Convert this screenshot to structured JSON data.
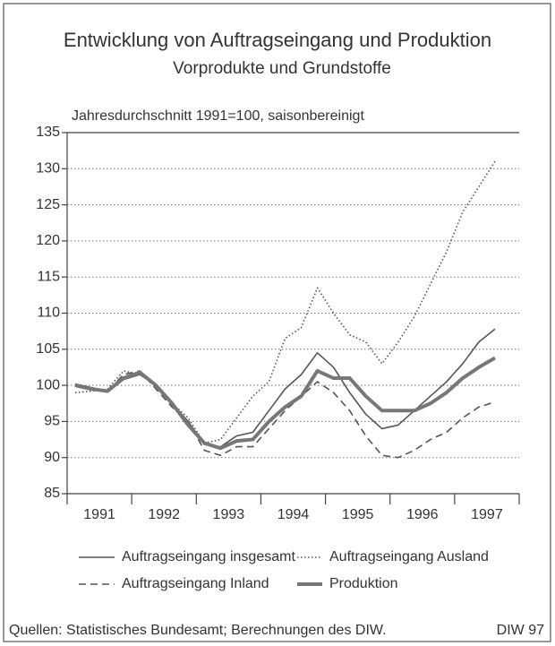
{
  "chart_data": {
    "type": "line",
    "title": "Entwicklung von Auftragseingang und Produktion",
    "subtitle": "Vorprodukte und Grundstoffe",
    "y_label": "Jahresdurchschnitt 1991=100, saisonbereinigt",
    "source": "Quellen: Statistisches Bundesamt; Berechnungen des DIW.",
    "credit": "DIW 97",
    "x": [
      1991.125,
      1991.375,
      1991.625,
      1991.875,
      1992.125,
      1992.375,
      1992.625,
      1992.875,
      1993.125,
      1993.375,
      1993.625,
      1993.875,
      1994.125,
      1994.375,
      1994.625,
      1994.875,
      1995.125,
      1995.375,
      1995.625,
      1995.875,
      1996.125,
      1996.375,
      1996.625,
      1996.875,
      1997.125,
      1997.375,
      1997.625
    ],
    "series": [
      {
        "name": "Auftragseingang insgesamt",
        "color": "#555",
        "dash": "solid",
        "width": 1.6,
        "values": [
          100.2,
          99.7,
          99.2,
          100.8,
          101.5,
          100,
          97.5,
          95,
          91.8,
          91.5,
          93,
          93.5,
          96.5,
          99.5,
          101.5,
          104.5,
          102.5,
          99,
          96,
          94,
          94.5,
          96.5,
          98.5,
          100.5,
          103,
          106,
          107.8
        ]
      },
      {
        "name": "Auftragseingang Ausland",
        "color": "#555",
        "dash": "dotted",
        "width": 1.6,
        "values": [
          99,
          99.2,
          99.5,
          102,
          101.5,
          100,
          97.5,
          95.5,
          92,
          92.5,
          95.5,
          98.5,
          100.5,
          106.5,
          108,
          113.5,
          110,
          107,
          106,
          103,
          106,
          109.5,
          114,
          118.5,
          124,
          127.5,
          131
        ]
      },
      {
        "name": "Auftragseingang Inland",
        "color": "#555",
        "dash": "dashed",
        "width": 1.6,
        "values": [
          100,
          99.6,
          99.2,
          101.5,
          102,
          99.5,
          97,
          95,
          91,
          90.3,
          91.5,
          91.5,
          94,
          96.5,
          98.5,
          100.5,
          99,
          96.5,
          93,
          90.3,
          90,
          91,
          92.5,
          93.5,
          95.5,
          97,
          97.7
        ]
      },
      {
        "name": "Produktion",
        "color": "#777",
        "dash": "solid",
        "width": 4,
        "values": [
          100,
          99.5,
          99.2,
          101,
          101.8,
          100,
          97.5,
          94.5,
          92,
          91.3,
          92.3,
          92.5,
          95,
          97,
          98.5,
          102,
          101,
          101,
          98.5,
          96.5,
          96.5,
          96.5,
          97.5,
          99,
          101,
          102.5,
          103.8
        ]
      }
    ],
    "xlim": [
      1991,
      1998
    ],
    "xticks": [
      {
        "value": 1991.5,
        "label": "1991"
      },
      {
        "value": 1992.5,
        "label": "1992"
      },
      {
        "value": 1993.5,
        "label": "1993"
      },
      {
        "value": 1994.5,
        "label": "1994"
      },
      {
        "value": 1995.5,
        "label": "1995"
      },
      {
        "value": 1996.5,
        "label": "1996"
      },
      {
        "value": 1997.5,
        "label": "1997"
      }
    ],
    "ylim": [
      85,
      135
    ],
    "yticks": [
      85,
      90,
      95,
      100,
      105,
      110,
      115,
      120,
      125,
      130,
      135
    ],
    "grid": true
  }
}
